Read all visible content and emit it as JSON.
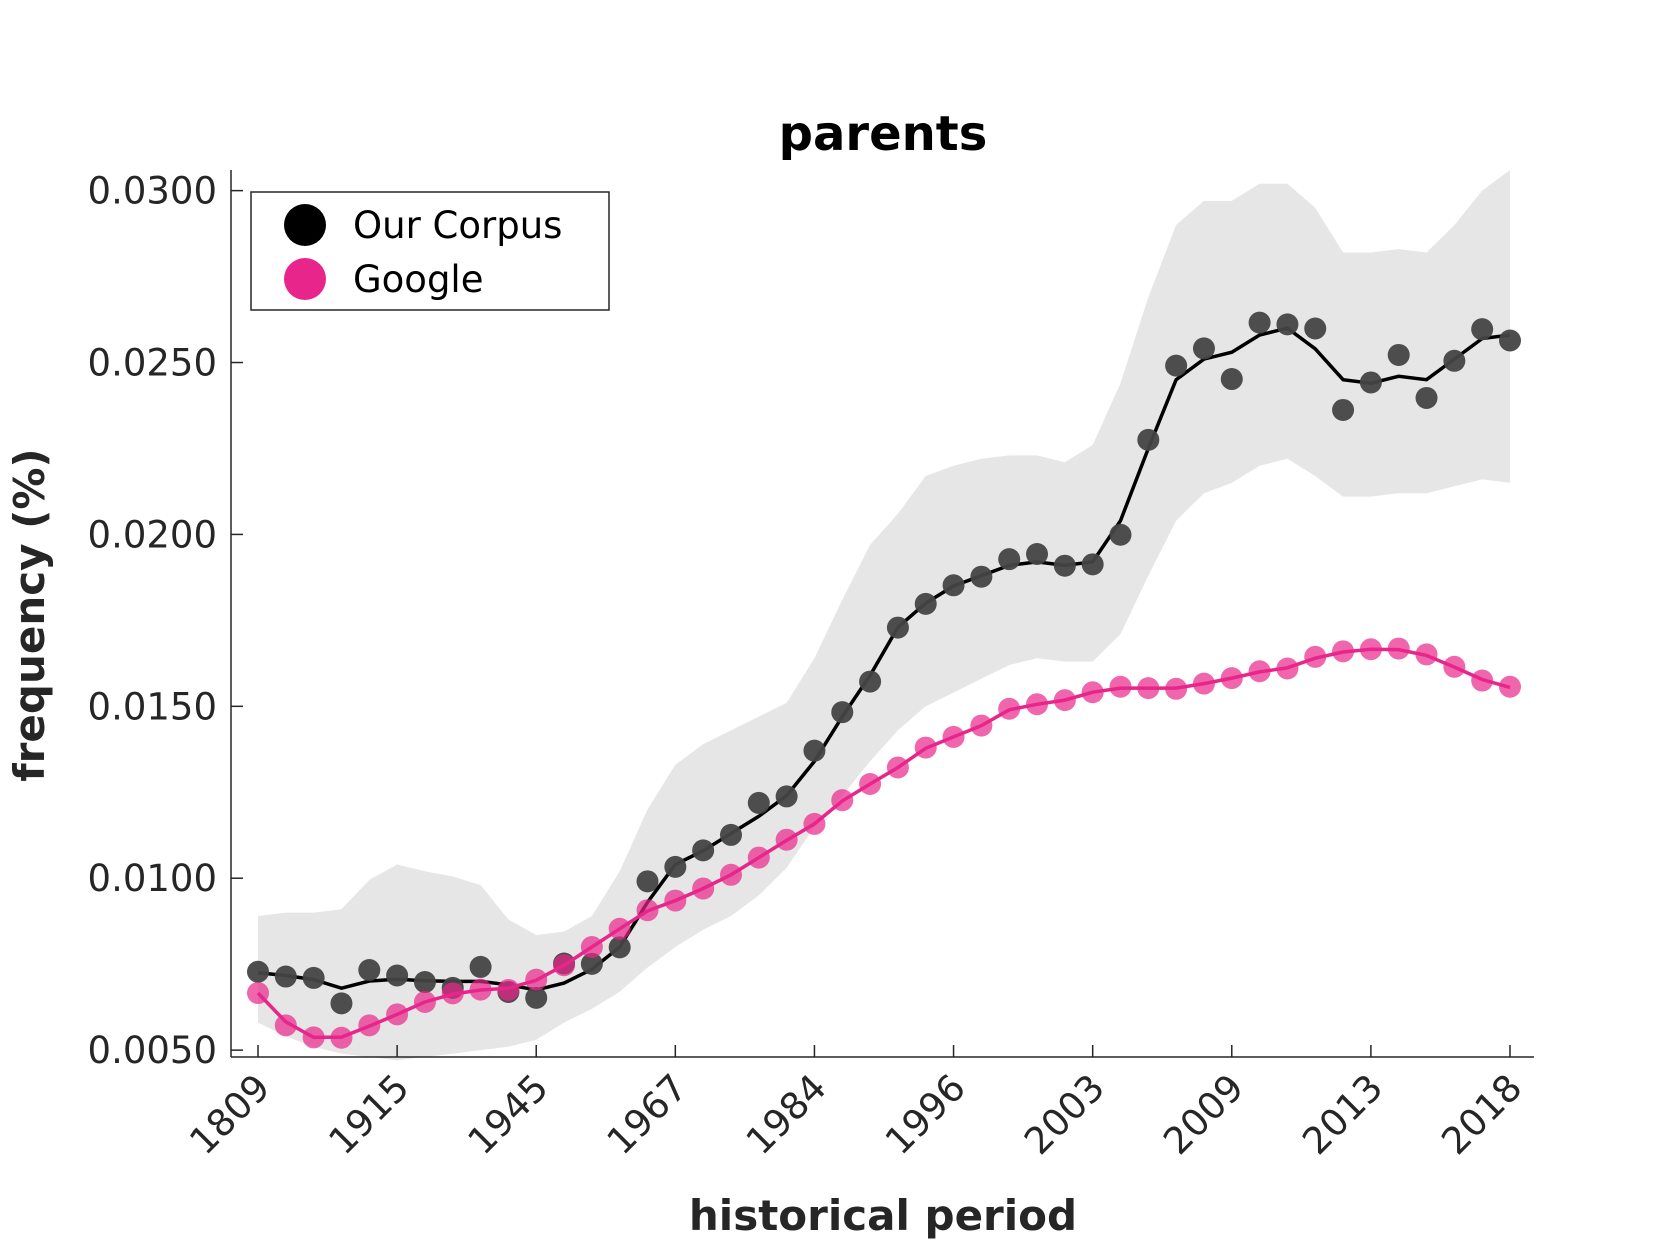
{
  "chart_data": {
    "type": "line",
    "title": "parents",
    "xlabel": "historical period",
    "ylabel": "frequency (%)",
    "ylim": [
      0.0048,
      0.0306
    ],
    "yticks": [
      "0.0050",
      "0.0100",
      "0.0150",
      "0.0200",
      "0.0250",
      "0.0300"
    ],
    "yticks_values": [
      0.005,
      0.01,
      0.015,
      0.02,
      0.025,
      0.03
    ],
    "xticks": [
      "1809",
      "1915",
      "1945",
      "1967",
      "1984",
      "1996",
      "2003",
      "2009",
      "2013",
      "2018"
    ],
    "xticks_index": [
      1,
      6,
      11,
      16,
      21,
      26,
      31,
      36,
      41,
      46
    ],
    "x_index": [
      1,
      2,
      3,
      4,
      5,
      6,
      7,
      8,
      9,
      10,
      11,
      12,
      13,
      14,
      15,
      16,
      17,
      18,
      19,
      20,
      21,
      22,
      23,
      24,
      25,
      26,
      27,
      28,
      29,
      30,
      31,
      32,
      33,
      34,
      35,
      36,
      37,
      38,
      39,
      40,
      41,
      42,
      43,
      44,
      45,
      46
    ],
    "legend": {
      "position": "top-left",
      "entries": [
        "Our Corpus",
        "Google"
      ]
    },
    "grid": false,
    "colors": {
      "corpus": "#444444",
      "corpus_line": "#000000",
      "google": "#e8258a",
      "band": "#e6e6e6"
    },
    "series": [
      {
        "name": "Our Corpus",
        "points": [
          0.00728,
          0.00714,
          0.0071,
          0.00636,
          0.00733,
          0.00717,
          0.00698,
          0.00681,
          0.00742,
          0.00669,
          0.00652,
          0.00752,
          0.00751,
          0.00799,
          0.00991,
          0.01033,
          0.01081,
          0.01126,
          0.01219,
          0.01238,
          0.01371,
          0.01483,
          0.01572,
          0.01729,
          0.01798,
          0.01852,
          0.01877,
          0.01928,
          0.01943,
          0.01909,
          0.01913,
          0.01999,
          0.02275,
          0.02491,
          0.02541,
          0.02452,
          0.02616,
          0.02611,
          0.02599,
          0.02362,
          0.02442,
          0.02522,
          0.02397,
          0.02505,
          0.02597,
          0.02564
        ],
        "smoothed": [
          0.00725,
          0.00717,
          0.00705,
          0.0068,
          0.00701,
          0.00706,
          0.00702,
          0.007,
          0.007,
          0.0069,
          0.00675,
          0.00695,
          0.00735,
          0.008,
          0.0093,
          0.0104,
          0.0108,
          0.0113,
          0.0118,
          0.0124,
          0.0134,
          0.0147,
          0.0159,
          0.0173,
          0.018,
          0.0185,
          0.0188,
          0.0191,
          0.0192,
          0.0191,
          0.0192,
          0.0204,
          0.0225,
          0.0245,
          0.0251,
          0.0253,
          0.0258,
          0.026,
          0.0254,
          0.0245,
          0.0244,
          0.0246,
          0.0245,
          0.0251,
          0.0257,
          0.0258
        ],
        "band_upper": [
          0.0089,
          0.009,
          0.009,
          0.0091,
          0.00995,
          0.0104,
          0.0102,
          0.01005,
          0.0098,
          0.0088,
          0.00835,
          0.00845,
          0.0089,
          0.0102,
          0.012,
          0.0133,
          0.0139,
          0.0143,
          0.0147,
          0.0151,
          0.0164,
          0.0181,
          0.0197,
          0.0206,
          0.0217,
          0.022,
          0.0222,
          0.0223,
          0.0223,
          0.0221,
          0.0226,
          0.0244,
          0.0269,
          0.029,
          0.0297,
          0.0297,
          0.0302,
          0.0302,
          0.0295,
          0.0282,
          0.0282,
          0.0283,
          0.0282,
          0.029,
          0.03,
          0.0306
        ],
        "band_lower": [
          0.0058,
          0.0054,
          0.0051,
          0.0049,
          0.0048,
          0.0047,
          0.0048,
          0.0049,
          0.005,
          0.0051,
          0.0053,
          0.0058,
          0.0062,
          0.0067,
          0.0074,
          0.008,
          0.0085,
          0.0089,
          0.0095,
          0.0103,
          0.0115,
          0.0124,
          0.0134,
          0.0143,
          0.015,
          0.0154,
          0.0158,
          0.0162,
          0.0164,
          0.0163,
          0.0163,
          0.0171,
          0.0188,
          0.0204,
          0.0212,
          0.0215,
          0.022,
          0.0222,
          0.0217,
          0.0211,
          0.0211,
          0.0212,
          0.0212,
          0.0214,
          0.0216,
          0.0215
        ]
      },
      {
        "name": "Google",
        "points": [
          0.00666,
          0.00572,
          0.00537,
          0.00536,
          0.00572,
          0.00604,
          0.0064,
          0.00665,
          0.00676,
          0.00675,
          0.00705,
          0.00747,
          0.008,
          0.00853,
          0.00907,
          0.00935,
          0.0097,
          0.0101,
          0.0106,
          0.01112,
          0.01158,
          0.01227,
          0.01274,
          0.01322,
          0.0138,
          0.01411,
          0.01444,
          0.01493,
          0.01506,
          0.01518,
          0.01541,
          0.01557,
          0.01553,
          0.01551,
          0.01566,
          0.01582,
          0.01602,
          0.0161,
          0.01644,
          0.0166,
          0.01666,
          0.01668,
          0.01651,
          0.01615,
          0.01575,
          0.01557
        ],
        "smoothed": [
          0.00666,
          0.00582,
          0.00537,
          0.00538,
          0.0057,
          0.00604,
          0.0064,
          0.00663,
          0.00675,
          0.0068,
          0.00703,
          0.00747,
          0.008,
          0.00853,
          0.00905,
          0.00935,
          0.0097,
          0.0101,
          0.0106,
          0.0111,
          0.01158,
          0.01225,
          0.01274,
          0.01322,
          0.01378,
          0.01411,
          0.01444,
          0.0149,
          0.01506,
          0.01518,
          0.01541,
          0.01553,
          0.01553,
          0.01553,
          0.01566,
          0.01582,
          0.016,
          0.01612,
          0.0164,
          0.01658,
          0.01666,
          0.01665,
          0.01648,
          0.01614,
          0.01578,
          0.01555
        ]
      }
    ]
  }
}
